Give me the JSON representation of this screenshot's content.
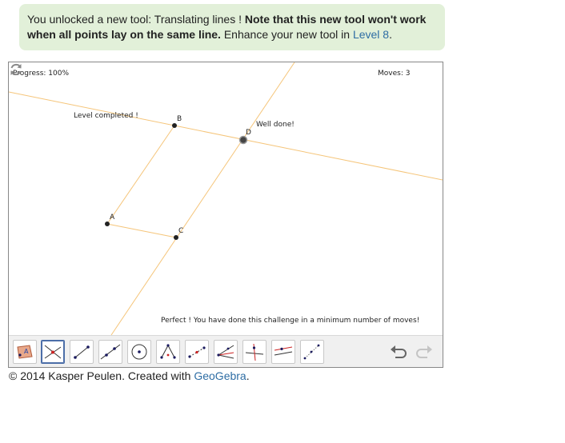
{
  "banner": {
    "text_prefix": "You unlocked a new tool: Translating lines ! ",
    "text_bold": "Note that this new tool won't work when all points lay on the same line.",
    "text_suffix": " Enhance your new tool in ",
    "link": "Level 8",
    "text_end": "."
  },
  "applet": {
    "progress": "Progress: 100%",
    "moves": "Moves: 3",
    "level_completed": "Level completed !",
    "well_done": "Well done!",
    "perfect": "Perfect ! You have done this challenge in a minimum number of moves!",
    "points": {
      "a": "A",
      "b": "B",
      "c": "C",
      "d": "D"
    },
    "colors": {
      "line": "#f5c57a",
      "point": "#222222",
      "selected_border": "#4c6ea8"
    }
  },
  "toolbar": {
    "tools": [
      {
        "icon": "polygon-move-icon"
      },
      {
        "icon": "intersect-icon",
        "selected": true
      },
      {
        "icon": "segment-icon"
      },
      {
        "icon": "line-icon"
      },
      {
        "icon": "circle-icon"
      },
      {
        "icon": "triangle-points-icon"
      },
      {
        "icon": "midpoint-icon"
      },
      {
        "icon": "angle-bisector-icon"
      },
      {
        "icon": "perpendicular-icon"
      },
      {
        "icon": "parallel-icon"
      },
      {
        "icon": "translate-line-icon"
      }
    ],
    "undo_icon": "undo-icon",
    "redo_icon": "redo-icon"
  },
  "footer": {
    "text": "© 2014 Kasper Peulen. Created with ",
    "link": "GeoGebra",
    "end": "."
  }
}
